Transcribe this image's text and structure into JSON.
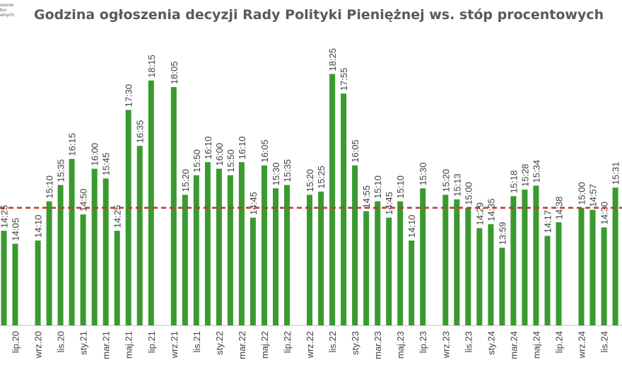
{
  "logo": {
    "lines": [
      "szenie",
      "bui",
      "alnych"
    ]
  },
  "chart_data": {
    "type": "bar",
    "title": "Godzina ogłoszenia decyzji Rady Polityki Pieniężnej ws. stóp procentowych",
    "series_color": "#3a9a2f",
    "reference_line": {
      "value": "15:00",
      "color": "#c0392b",
      "style": "dashed"
    },
    "ylim": [
      "12:00",
      "18:30"
    ],
    "points": [
      {
        "x": 0,
        "time": "14:25"
      },
      {
        "x": 1,
        "time": "14:05"
      },
      {
        "x": 3,
        "time": "14:10"
      },
      {
        "x": 4,
        "time": "15:10"
      },
      {
        "x": 5,
        "time": "15:35"
      },
      {
        "x": 6,
        "time": "16:15"
      },
      {
        "x": 7,
        "time": "14:50"
      },
      {
        "x": 8,
        "time": "16:00"
      },
      {
        "x": 9,
        "time": "15:45"
      },
      {
        "x": 10,
        "time": "14:25"
      },
      {
        "x": 11,
        "time": "17:30"
      },
      {
        "x": 12,
        "time": "16:35"
      },
      {
        "x": 13,
        "time": "18:15"
      },
      {
        "x": 15,
        "time": "18:05"
      },
      {
        "x": 16,
        "time": "15:20"
      },
      {
        "x": 17,
        "time": "15:50"
      },
      {
        "x": 18,
        "time": "16:10"
      },
      {
        "x": 19,
        "time": "16:00"
      },
      {
        "x": 20,
        "time": "15:50"
      },
      {
        "x": 21,
        "time": "16:10"
      },
      {
        "x": 22,
        "time": "14:45"
      },
      {
        "x": 23,
        "time": "16:05"
      },
      {
        "x": 24,
        "time": "15:30"
      },
      {
        "x": 25,
        "time": "15:35"
      },
      {
        "x": 27,
        "time": "15:20"
      },
      {
        "x": 28,
        "time": "15:25"
      },
      {
        "x": 29,
        "time": "18:25"
      },
      {
        "x": 30,
        "time": "17:55"
      },
      {
        "x": 31,
        "time": "16:05"
      },
      {
        "x": 32,
        "time": "14:55"
      },
      {
        "x": 33,
        "time": "15:10"
      },
      {
        "x": 34,
        "time": "14:45"
      },
      {
        "x": 35,
        "time": "15:10"
      },
      {
        "x": 36,
        "time": "14:10"
      },
      {
        "x": 37,
        "time": "15:30"
      },
      {
        "x": 39,
        "time": "15:20"
      },
      {
        "x": 40,
        "time": "15:13"
      },
      {
        "x": 41,
        "time": "15:00"
      },
      {
        "x": 42,
        "time": "14:29"
      },
      {
        "x": 43,
        "time": "14:35"
      },
      {
        "x": 44,
        "time": "13:59"
      },
      {
        "x": 45,
        "time": "15:18"
      },
      {
        "x": 46,
        "time": "15:28"
      },
      {
        "x": 47,
        "time": "15:34"
      },
      {
        "x": 48,
        "time": "14:17"
      },
      {
        "x": 49,
        "time": "14:38"
      },
      {
        "x": 51,
        "time": "15:00"
      },
      {
        "x": 52,
        "time": "14:57"
      },
      {
        "x": 53,
        "time": "14:30"
      },
      {
        "x": 54,
        "time": "15:31"
      }
    ],
    "categories": [
      {
        "x": 1,
        "label": "lip.20"
      },
      {
        "x": 3,
        "label": "wrz.20"
      },
      {
        "x": 5,
        "label": "lis.20"
      },
      {
        "x": 7,
        "label": "sty.21"
      },
      {
        "x": 9,
        "label": "mar.21"
      },
      {
        "x": 11,
        "label": "maj.21"
      },
      {
        "x": 13,
        "label": "lip.21"
      },
      {
        "x": 15,
        "label": "wrz.21"
      },
      {
        "x": 17,
        "label": "lis.21"
      },
      {
        "x": 19,
        "label": "sty.22"
      },
      {
        "x": 21,
        "label": "mar.22"
      },
      {
        "x": 23,
        "label": "maj.22"
      },
      {
        "x": 25,
        "label": "lip.22"
      },
      {
        "x": 27,
        "label": "wrz.22"
      },
      {
        "x": 29,
        "label": "lis.22"
      },
      {
        "x": 31,
        "label": "sty.23"
      },
      {
        "x": 33,
        "label": "mar.23"
      },
      {
        "x": 35,
        "label": "maj.23"
      },
      {
        "x": 37,
        "label": "lip.23"
      },
      {
        "x": 39,
        "label": "wrz.23"
      },
      {
        "x": 41,
        "label": "lis.23"
      },
      {
        "x": 43,
        "label": "sty.24"
      },
      {
        "x": 45,
        "label": "mar.24"
      },
      {
        "x": 47,
        "label": "maj.24"
      },
      {
        "x": 49,
        "label": "lip.24"
      },
      {
        "x": 51,
        "label": "wrz.24"
      },
      {
        "x": 53,
        "label": "lis.24"
      }
    ]
  }
}
